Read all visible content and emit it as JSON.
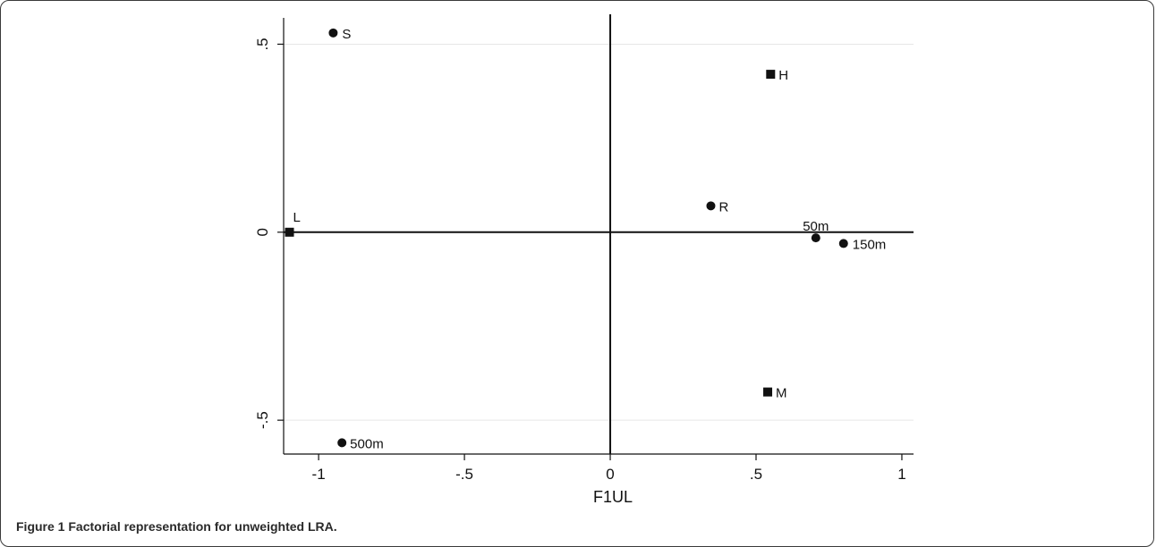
{
  "figure": {
    "label": "Figure 1",
    "caption": "Factorial representation for unweighted LRA."
  },
  "chart_data": {
    "type": "scatter",
    "title": "",
    "xlabel": "F1UL",
    "ylabel": "",
    "xlim": [
      -1.12,
      1.04
    ],
    "ylim": [
      -0.59,
      0.57
    ],
    "xticks": [
      -1,
      -0.5,
      0,
      0.5,
      1
    ],
    "xtick_labels": [
      "-1",
      "-.5",
      "0",
      ".5",
      "1"
    ],
    "yticks": [
      -0.5,
      0,
      0.5
    ],
    "ytick_labels": [
      "-.5",
      "0",
      ".5"
    ],
    "grid": "horizontal",
    "points": [
      {
        "label": "S",
        "x": -0.95,
        "y": 0.53,
        "marker": "circle"
      },
      {
        "label": "H",
        "x": 0.55,
        "y": 0.42,
        "marker": "square"
      },
      {
        "label": "R",
        "x": 0.345,
        "y": 0.07,
        "marker": "circle"
      },
      {
        "label": "L",
        "x": -1.1,
        "y": 0.0,
        "marker": "square"
      },
      {
        "label": "50m",
        "x": 0.705,
        "y": -0.015,
        "marker": "circle"
      },
      {
        "label": "150m",
        "x": 0.8,
        "y": -0.03,
        "marker": "circle"
      },
      {
        "label": "M",
        "x": 0.54,
        "y": -0.425,
        "marker": "square"
      },
      {
        "label": "500m",
        "x": -0.92,
        "y": -0.56,
        "marker": "circle"
      }
    ]
  }
}
